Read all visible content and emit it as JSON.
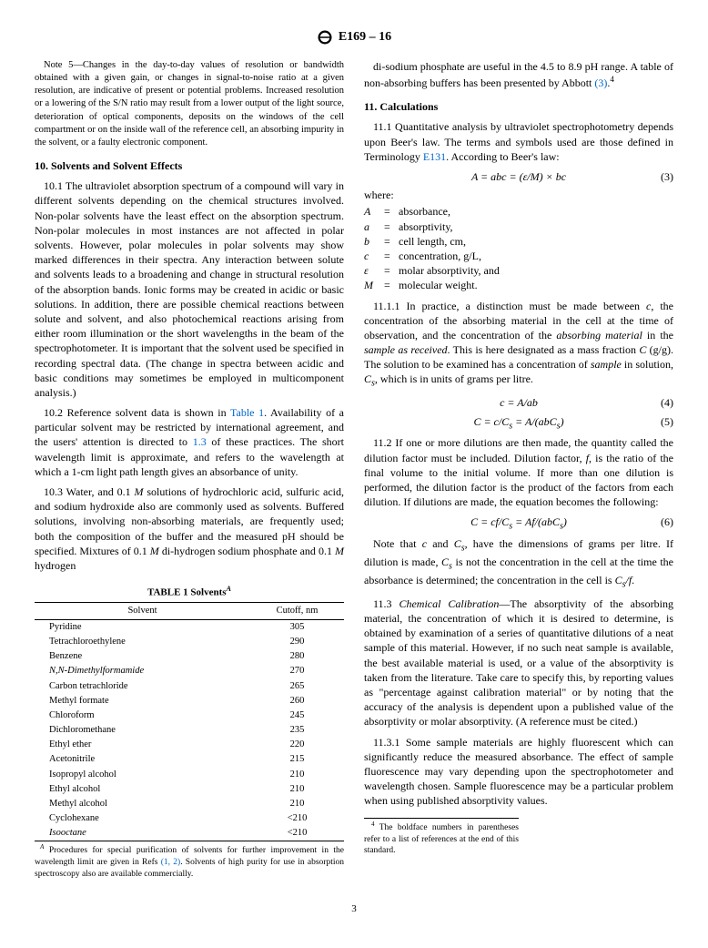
{
  "header": {
    "designation": "E169 – 16"
  },
  "note5": "Note 5—Changes in the day-to-day values of resolution or bandwidth obtained with a given gain, or changes in signal-to-noise ratio at a given resolution, are indicative of present or potential problems. Increased resolution or a lowering of the S/N ratio may result from a lower output of the light source, deterioration of optical components, deposits on the windows of the cell compartment or on the inside wall of the reference cell, an absorbing impurity in the solvent, or a faulty electronic component.",
  "section10": {
    "heading": "10. Solvents and Solvent Effects",
    "p1": "10.1 The ultraviolet absorption spectrum of a compound will vary in different solvents depending on the chemical structures involved. Non-polar solvents have the least effect on the absorption spectrum. Non-polar molecules in most instances are not affected in polar solvents. However, polar molecules in polar solvents may show marked differences in their spectra. Any interaction between solute and solvents leads to a broadening and change in structural resolution of the absorption bands. Ionic forms may be created in acidic or basic solutions. In addition, there are possible chemical reactions between solute and solvent, and also photochemical reactions arising from either room illumination or the short wavelengths in the beam of the spectrophotometer. It is important that the solvent used be specified in recording spectral data. (The change in spectra between acidic and basic conditions may sometimes be employed in multicomponent analysis.)",
    "p2a": "10.2 Reference solvent data is shown in ",
    "p2link": "Table 1",
    "p2b": ". Availability of a particular solvent may be restricted by international agreement, and the users' attention is directed to ",
    "p2link2": "1.3",
    "p2c": " of these practices. The short wavelength limit is approximate, and refers to the wavelength at which a 1-cm light path length gives an absorbance of unity.",
    "p3": "10.3 Water, and 0.1 M solutions of hydrochloric acid, sulfuric acid, and sodium hydroxide also are commonly used as solvents. Buffered solutions, involving non-absorbing materials, are frequently used; both the composition of the buffer and the measured pH should be specified. Mixtures of 0.1 M di-hydrogen sodium phosphate and 0.1 M hydrogen"
  },
  "table1": {
    "title": "TABLE 1 Solvents",
    "supA": "A",
    "col1": "Solvent",
    "col2": "Cutoff, nm",
    "rows": [
      [
        "Pyridine",
        "305"
      ],
      [
        "Tetrachloroethylene",
        "290"
      ],
      [
        "Benzene",
        "280"
      ],
      [
        "N,N-Dimethylformamide",
        "270"
      ],
      [
        "Carbon tetrachloride",
        "265"
      ],
      [
        "Methyl formate",
        "260"
      ],
      [
        "Chloroform",
        "245"
      ],
      [
        "Dichloromethane",
        "235"
      ],
      [
        "Ethyl ether",
        "220"
      ],
      [
        "Acetonitrile",
        "215"
      ],
      [
        "Isopropyl alcohol",
        "210"
      ],
      [
        "Ethyl alcohol",
        "210"
      ],
      [
        "Methyl alcohol",
        "210"
      ],
      [
        "Cyclohexane",
        "<210"
      ],
      [
        "Isooctane",
        "<210"
      ]
    ],
    "foot_a": "Procedures for special purification of solvents for further improvement in the wavelength limit are given in Refs ",
    "foot_refs": "(1, 2)",
    "foot_b": ". Solvents of high purity for use in absorption spectroscopy also are available commercially."
  },
  "col2top": {
    "p1a": "di-sodium phosphate are useful in the 4.5 to 8.9 pH range. A table of non-absorbing buffers has been presented by Abbott ",
    "ref3": "(3)",
    "sup4": "4"
  },
  "section11": {
    "heading": "11. Calculations",
    "p1a": "11.1 Quantitative analysis by ultraviolet spectrophotometry depends upon Beer's law. The terms and symbols used are those defined in Terminology ",
    "e131": "E131",
    "p1b": ". According to Beer's law:",
    "eq3": "A = abc = (ε/M) × bc",
    "eq3num": "(3)",
    "where": "where:",
    "defs": [
      [
        "A",
        "absorbance,"
      ],
      [
        "a",
        "absorptivity,"
      ],
      [
        "b",
        "cell length, cm,"
      ],
      [
        "c",
        "concentration, g/L,"
      ],
      [
        "ε",
        "molar absorptivity, and"
      ],
      [
        "M",
        "molecular weight."
      ]
    ],
    "p111": "11.1.1 In practice, a distinction must be made between c, the concentration of the absorbing material in the cell at the time of observation, and the concentration of the absorbing material in the sample as received. This is here designated as a mass fraction C (g/g). The solution to be examined has a concentration of sample in solution, Cs, which is in units of grams per litre.",
    "eq4": "c = A/ab",
    "eq4num": "(4)",
    "eq5": "C = c/Cs = A/(abCs)",
    "eq5num": "(5)",
    "p112": "11.2 If one or more dilutions are then made, the quantity called the dilution factor must be included. Dilution factor, f, is the ratio of the final volume to the initial volume. If more than one dilution is performed, the dilution factor is the product of the factors from each dilution. If dilutions are made, the equation becomes the following:",
    "eq6": "C = cf/Cs = Af/(abCs)",
    "eq6num": "(6)",
    "p112b": "Note that c and Cs, have the dimensions of grams per litre. If dilution is made, Cs is not the concentration in the cell at the time the absorbance is determined; the concentration in the cell is Cs/f.",
    "p113": "11.3 Chemical Calibration—The absorptivity of the absorbing material, the concentration of which it is desired to determine, is obtained by examination of a series of quantitative dilutions of a neat sample of this material. However, if no such neat sample is available, the best available material is used, or a value of the absorptivity is taken from the literature. Take care to specify this, by reporting values as \"percentage against calibration material\" or by noting that the accuracy of the analysis is dependent upon a published value of the absorptivity or molar absorptivity. (A reference must be cited.)",
    "p1131": "11.3.1 Some sample materials are highly fluorescent which can significantly reduce the measured absorbance. The effect of sample fluorescence may vary depending upon the spectrophotometer and wavelength chosen. Sample fluorescence may be a particular problem when using published absorptivity values."
  },
  "footnote4": "4 The boldface numbers in parentheses refer to a list of references at the end of this standard.",
  "pageNumber": "3"
}
